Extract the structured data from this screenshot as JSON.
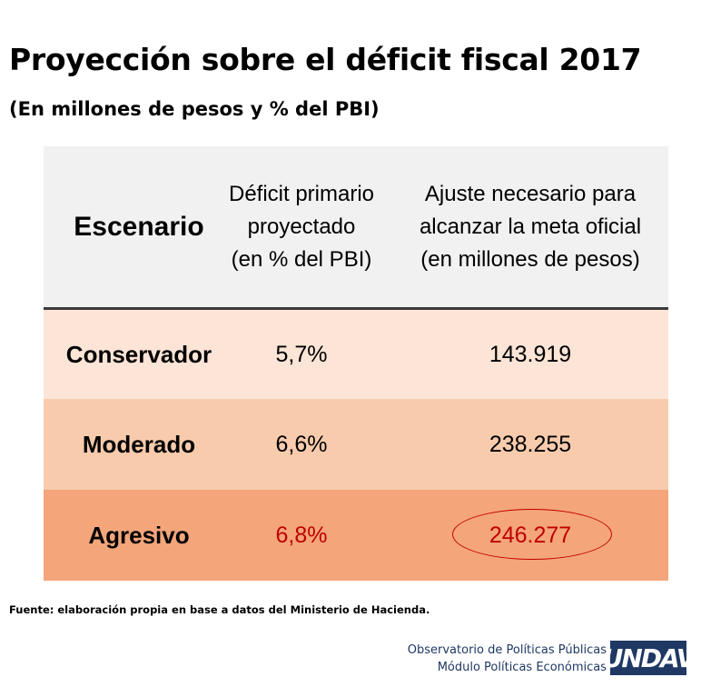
{
  "title": "Proyección sobre el déficit fiscal 2017",
  "subtitle": "(En millones de pesos y % del PBI)",
  "chart_data": {
    "type": "table",
    "columns": [
      "Escenario",
      [
        "Déficit primario",
        "proyectado",
        "(en % del PBI)"
      ],
      [
        "Ajuste necesario para",
        "alcanzar la meta oficial",
        "(en millones de pesos)"
      ]
    ],
    "rows": [
      {
        "escenario": "Conservador",
        "deficit": "5,7%",
        "ajuste": "143.919"
      },
      {
        "escenario": "Moderado",
        "deficit": "6,6%",
        "ajuste": "238.255"
      },
      {
        "escenario": "Agresivo",
        "deficit": "6,8%",
        "ajuste": "246.277"
      }
    ],
    "highlight_color": "#c00000",
    "row_colors": [
      "#fce4d6",
      "#f8cbad",
      "#f4a57a"
    ],
    "header_color": "#f1f1f1"
  },
  "source": "Fuente: elaboración propia en base a datos del Ministerio de Hacienda.",
  "org": {
    "line1": "Observatorio de Políticas Públicas",
    "line2": "Módulo Políticas Económicas",
    "logo_text": "UNDAV"
  }
}
